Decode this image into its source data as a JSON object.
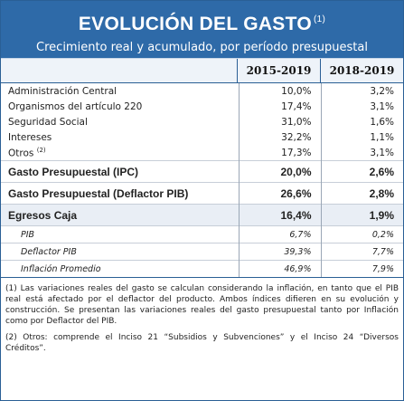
{
  "header": {
    "title": "EVOLUCIÓN DEL GASTO",
    "title_note": "(1)",
    "subtitle": "Crecimiento real y acumulado, por período presupuestal"
  },
  "columns": [
    "2015-2019",
    "2018-2019"
  ],
  "rows_small": [
    {
      "label": "Administración Central",
      "v1": "10,0%",
      "v2": "3,2%"
    },
    {
      "label": "Organismos del artículo 220",
      "v1": "17,4%",
      "v2": "3,1%"
    },
    {
      "label": "Seguridad Social",
      "v1": "31,0%",
      "v2": "1,6%"
    },
    {
      "label": "Intereses",
      "v1": "32,2%",
      "v2": "1,1%"
    },
    {
      "label": "Otros",
      "label_note": "(2)",
      "v1": "17,3%",
      "v2": "3,1%"
    }
  ],
  "rows_big": [
    {
      "label": "Gasto Presupuestal (IPC)",
      "v1": "20,0%",
      "v2": "2,6%"
    },
    {
      "label": "Gasto Presupuestal (Deflactor PIB)",
      "v1": "26,6%",
      "v2": "2,8%"
    },
    {
      "label": "Egresos Caja",
      "v1": "16,4%",
      "v2": "1,9%"
    }
  ],
  "rows_sub": [
    {
      "label": "PIB",
      "v1": "6,7%",
      "v2": "0,2%"
    },
    {
      "label": "Deflactor PIB",
      "v1": "39,3%",
      "v2": "7,7%"
    },
    {
      "label": "Inflación Promedio",
      "v1": "46,9%",
      "v2": "7,9%"
    }
  ],
  "notes": [
    "(1) Las variaciones reales del gasto se calculan considerando la inflación, en tanto que el PIB real está afectado por el deflactor del producto. Ambos índices difieren en su evolución y construcción. Se presentan las variaciones reales del gasto presupuestal tanto por Inflación como por Deflactor del PIB.",
    "(2) Otros: comprende el Inciso 21 “Subsidios y Subvenciones” y el Inciso 24 “Diversos Créditos”."
  ]
}
